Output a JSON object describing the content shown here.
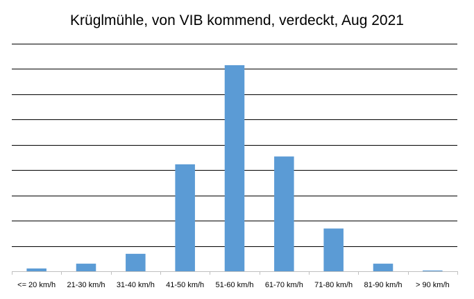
{
  "chart_data": {
    "type": "bar",
    "title": "Krüglmühle, von VIB kommend, verdeckt, Aug 2021",
    "xlabel": "",
    "ylabel": "",
    "categories": [
      "<= 20 km/h",
      "21-30 km/h",
      "31-40 km/h",
      "41-50 km/h",
      "51-60 km/h",
      "61-70 km/h",
      "71-80 km/h",
      "81-90 km/h",
      "> 90 km/h"
    ],
    "values": [
      1.1,
      3.0,
      6.9,
      42.3,
      81.5,
      45.4,
      16.9,
      3.0,
      0.3
    ],
    "ylim": [
      0,
      90
    ],
    "y_tick_step": 10,
    "y_ticks_labeled": false,
    "grid": true,
    "legend": "none",
    "colors": {
      "bar": "#5b9bd5",
      "grid": "#000000",
      "axis": "#bfbfbf"
    }
  }
}
